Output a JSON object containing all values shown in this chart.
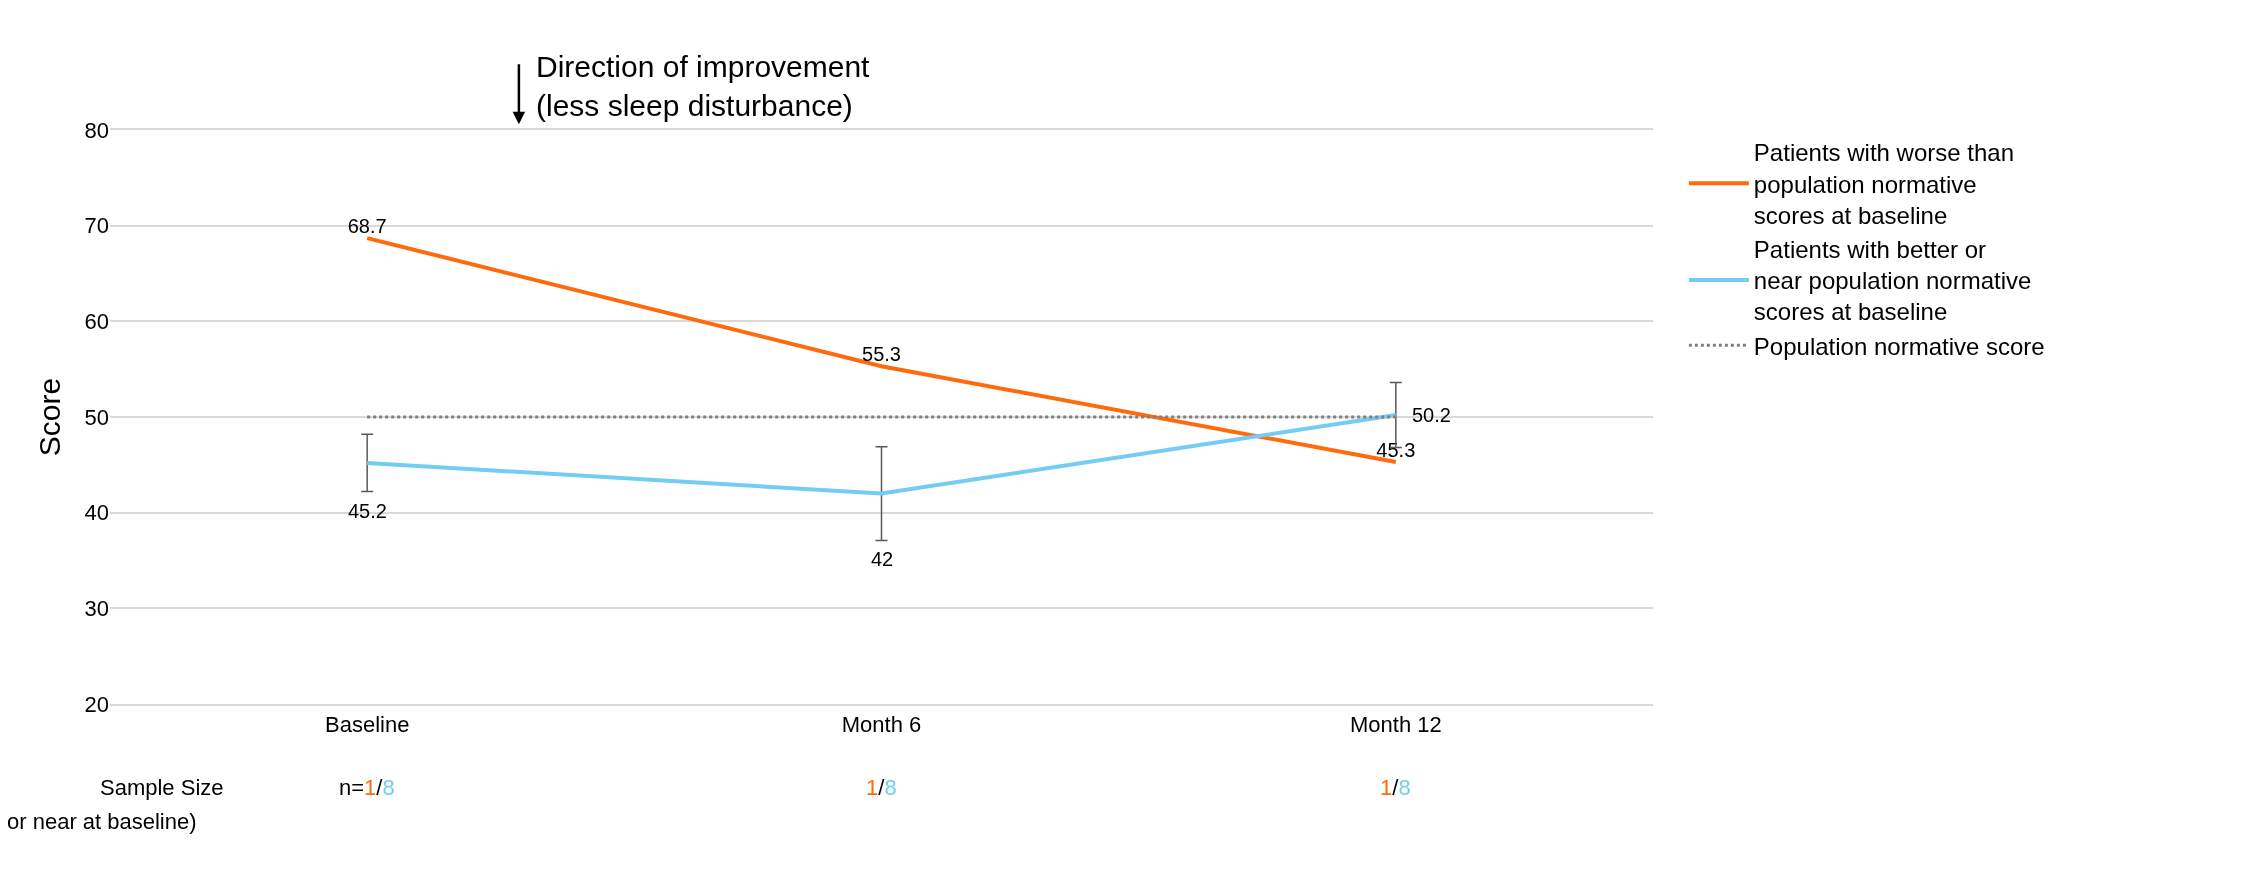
{
  "chart_data": {
    "type": "line",
    "ylabel": "Score",
    "categories": [
      "Baseline",
      "Month 6",
      "Month 12"
    ],
    "series": [
      {
        "name": "Patients with worse than population normative scores at baseline",
        "color": "#ff6a0c",
        "values": [
          68.7,
          55.3,
          45.3
        ]
      },
      {
        "name": "Patients with better or near population normative scores at baseline",
        "color": "#72cdf4",
        "values": [
          45.2,
          42,
          50.2
        ],
        "errors": [
          3,
          4.9,
          3.4
        ]
      },
      {
        "name": "Population normative score",
        "color": "#808080",
        "values": [
          50,
          50,
          50
        ],
        "line_style": "dotted",
        "data_labels": false
      }
    ],
    "data_labels": true,
    "ylim": [
      20,
      80
    ],
    "yticks": [
      20,
      30,
      40,
      50,
      60,
      70,
      80
    ],
    "grid": "y",
    "legend": "right",
    "line_style": "solid",
    "annotations": [
      "Direction of improvement\n(less sleep disturbance)",
      "Sample Size",
      "n=1/8",
      "1/8",
      "1/8",
      "or near at baseline)"
    ]
  }
}
